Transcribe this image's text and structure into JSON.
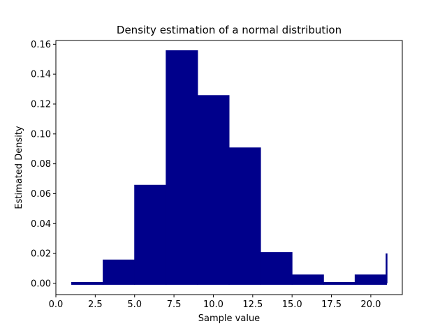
{
  "chart_data": {
    "type": "area",
    "title": "Density estimation of a normal distribution",
    "xlabel": "Sample value",
    "ylabel": "Estimated Density",
    "xlim": [
      0.0,
      22.0
    ],
    "ylim": [
      -0.0075,
      0.1625
    ],
    "x_ticks": [
      0.0,
      2.5,
      5.0,
      7.5,
      10.0,
      12.5,
      15.0,
      17.5,
      20.0
    ],
    "x_tick_labels": [
      "0.0",
      "2.5",
      "5.0",
      "7.5",
      "10.0",
      "12.5",
      "15.0",
      "17.5",
      "20.0"
    ],
    "y_ticks": [
      0.0,
      0.02,
      0.04,
      0.06,
      0.08,
      0.1,
      0.12,
      0.14,
      0.16
    ],
    "y_tick_labels": [
      "0.00",
      "0.02",
      "0.04",
      "0.06",
      "0.08",
      "0.10",
      "0.12",
      "0.14",
      "0.16"
    ],
    "grid": false,
    "fill_color": "#00008b",
    "bins": [
      {
        "x0": 1,
        "x1": 3,
        "density": 0.0
      },
      {
        "x0": 3,
        "x1": 5,
        "density": 0.015
      },
      {
        "x0": 5,
        "x1": 7,
        "density": 0.065
      },
      {
        "x0": 7,
        "x1": 9,
        "density": 0.155
      },
      {
        "x0": 9,
        "x1": 11,
        "density": 0.125
      },
      {
        "x0": 11,
        "x1": 13,
        "density": 0.09
      },
      {
        "x0": 13,
        "x1": 15,
        "density": 0.02
      },
      {
        "x0": 15,
        "x1": 17,
        "density": 0.005
      },
      {
        "x0": 17,
        "x1": 19,
        "density": 0.0
      },
      {
        "x0": 19,
        "x1": 21,
        "density": 0.005
      }
    ],
    "end_spike": {
      "x": 21,
      "density": 0.02
    }
  }
}
